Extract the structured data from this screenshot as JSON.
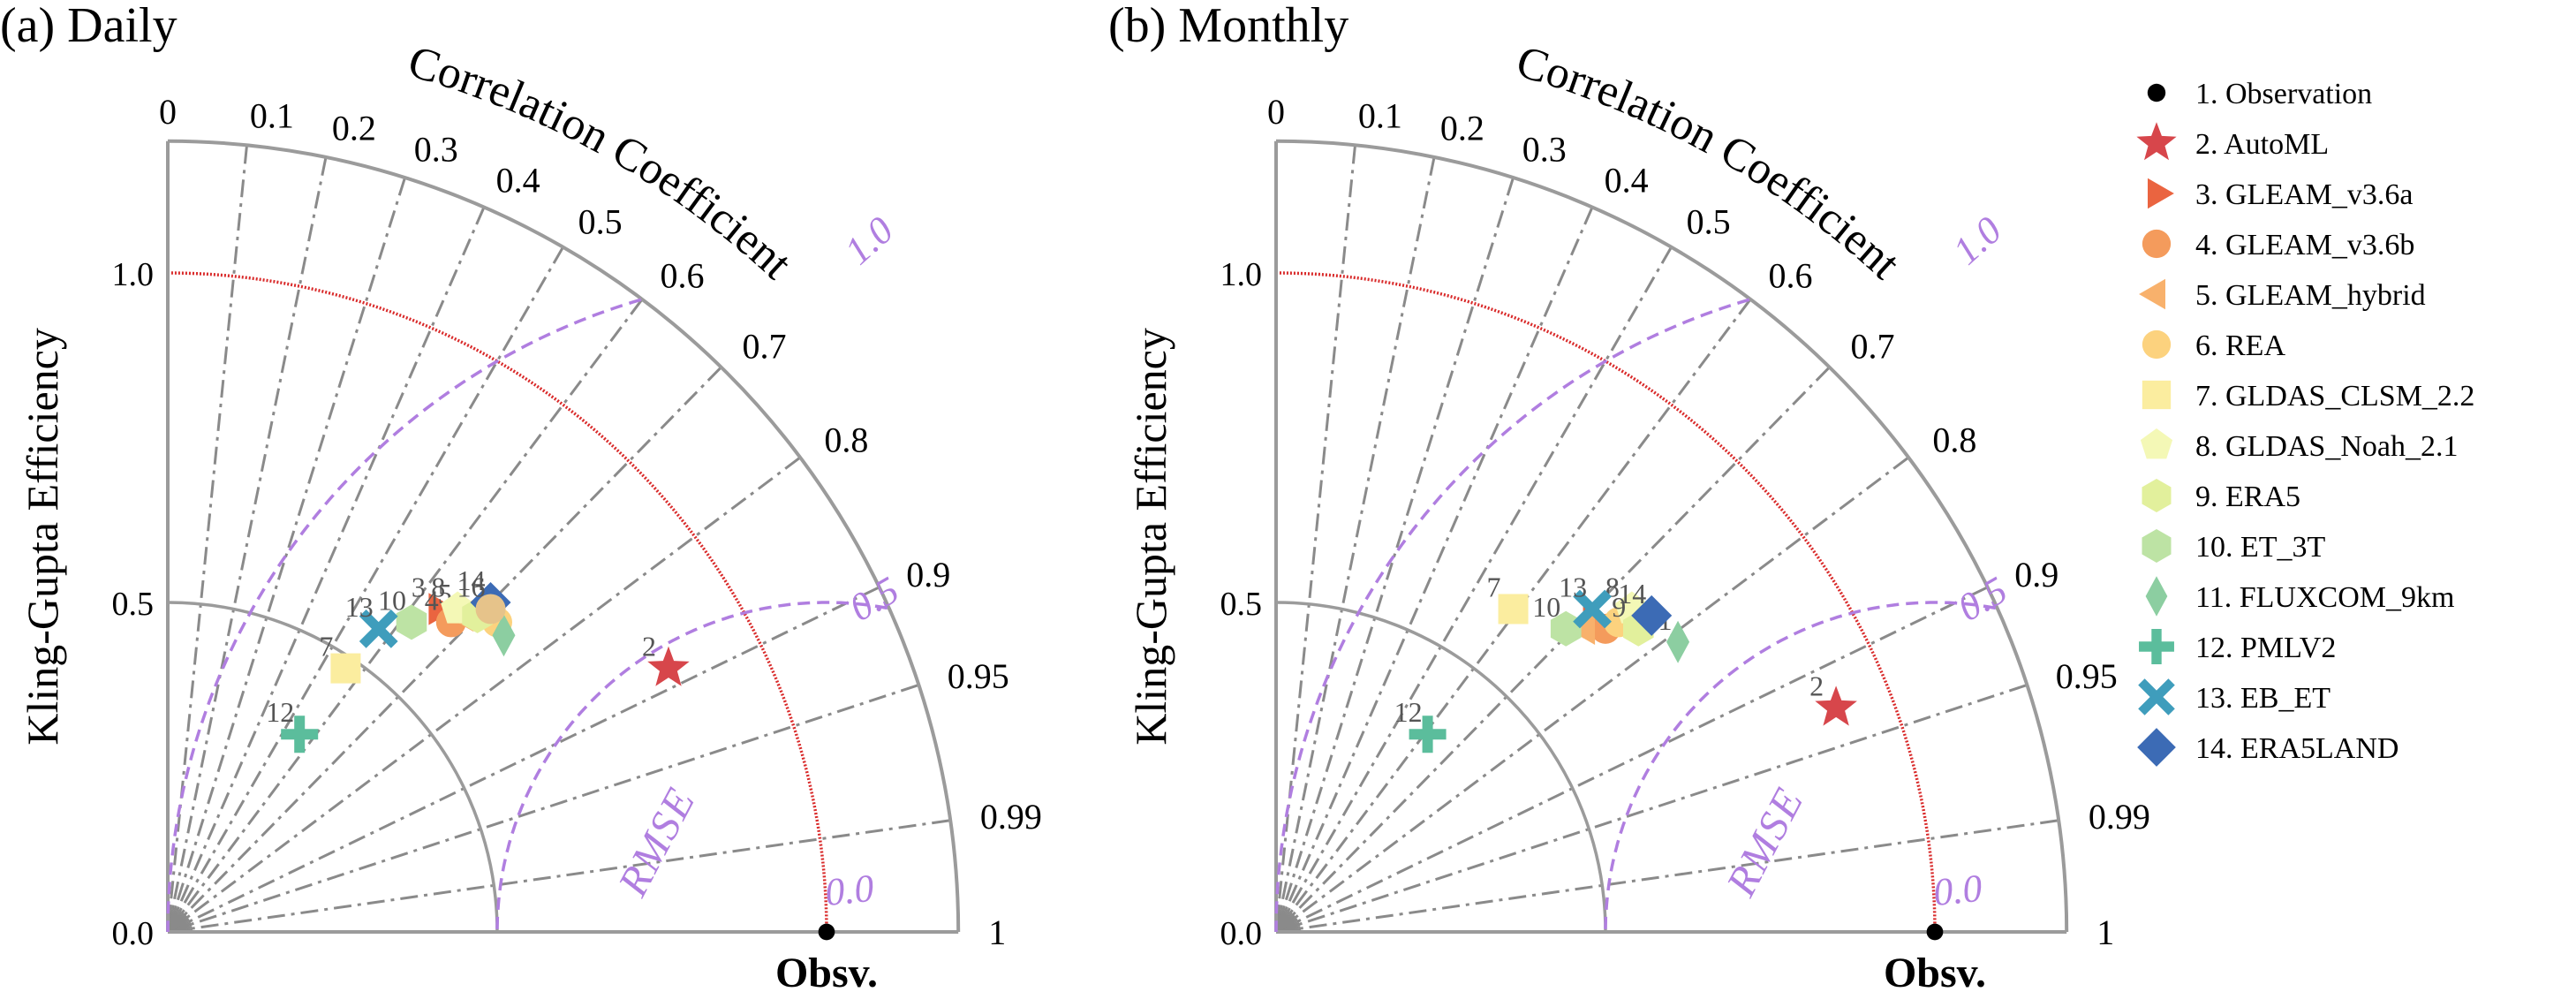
{
  "chart_data": [
    {
      "type": "taylor_diagram",
      "panel_label": "(a) Daily",
      "ylabel": "Kling-Gupta Efficiency",
      "angular_label": "Correlation Coefficient",
      "rms_label": "RMSE",
      "ref_label": "Obsv.",
      "radial_ticks": [
        "0.0",
        "0.5",
        "1.0"
      ],
      "radial_tick_values": [
        0.0,
        0.5,
        1.0
      ],
      "radial_max": 1.2,
      "corr_ticks": [
        "0",
        "0.1",
        "0.2",
        "0.3",
        "0.4",
        "0.5",
        "0.6",
        "0.7",
        "0.8",
        "0.9",
        "0.95",
        "0.99",
        "1"
      ],
      "corr_tick_values": [
        0,
        0.1,
        0.2,
        0.3,
        0.4,
        0.5,
        0.6,
        0.7,
        0.8,
        0.9,
        0.95,
        0.99,
        1
      ],
      "rms_contours": [
        "0.0",
        "0.5",
        "1.0"
      ],
      "rms_contour_values": [
        0.0,
        0.5,
        1.0
      ],
      "points": [
        {
          "id": "1",
          "x": 1.0,
          "y": 0.0,
          "show_id": false
        },
        {
          "id": "2",
          "x": 0.76,
          "y": 0.4,
          "show_id": true
        },
        {
          "id": "3",
          "x": 0.41,
          "y": 0.49,
          "show_id": true
        },
        {
          "id": "4",
          "x": 0.43,
          "y": 0.47,
          "show_id": true
        },
        {
          "id": "5",
          "x": 0.45,
          "y": 0.48,
          "show_id": true
        },
        {
          "id": "6",
          "x": 0.5,
          "y": 0.47,
          "show_id": false
        },
        {
          "id": "7",
          "x": 0.27,
          "y": 0.4,
          "show_id": true
        },
        {
          "id": "8",
          "x": 0.44,
          "y": 0.49,
          "show_id": true
        },
        {
          "id": "9",
          "x": 0.47,
          "y": 0.48,
          "show_id": false
        },
        {
          "id": "10",
          "x": 0.37,
          "y": 0.47,
          "show_id": true
        },
        {
          "id": "11",
          "x": 0.51,
          "y": 0.45,
          "show_id": false
        },
        {
          "id": "12",
          "x": 0.2,
          "y": 0.3,
          "show_id": true
        },
        {
          "id": "13",
          "x": 0.32,
          "y": 0.46,
          "show_id": true
        },
        {
          "id": "14",
          "x": 0.49,
          "y": 0.5,
          "show_id": true
        },
        {
          "id": "16",
          "x": 0.49,
          "y": 0.49,
          "show_id": true
        }
      ]
    },
    {
      "type": "taylor_diagram",
      "panel_label": "(b) Monthly",
      "ylabel": "Kling-Gupta Efficiency",
      "angular_label": "Correlation Coefficient",
      "rms_label": "RMSE",
      "ref_label": "Obsv.",
      "radial_ticks": [
        "0.0",
        "0.5",
        "1.0"
      ],
      "radial_tick_values": [
        0.0,
        0.5,
        1.0
      ],
      "radial_max": 1.2,
      "corr_ticks": [
        "0",
        "0.1",
        "0.2",
        "0.3",
        "0.4",
        "0.5",
        "0.6",
        "0.7",
        "0.8",
        "0.9",
        "0.95",
        "0.99",
        "1"
      ],
      "corr_tick_values": [
        0,
        0.1,
        0.2,
        0.3,
        0.4,
        0.5,
        0.6,
        0.7,
        0.8,
        0.9,
        0.95,
        0.99,
        1
      ],
      "rms_contours": [
        "0.0",
        "0.5",
        "1.0"
      ],
      "rms_contour_values": [
        0.0,
        0.5,
        1.0
      ],
      "points": [
        {
          "id": "1",
          "x": 1.0,
          "y": 0.0,
          "show_id": false
        },
        {
          "id": "2",
          "x": 0.85,
          "y": 0.34,
          "show_id": true
        },
        {
          "id": "3",
          "x": 0.48,
          "y": 0.47,
          "show_id": false
        },
        {
          "id": "4",
          "x": 0.5,
          "y": 0.46,
          "show_id": false
        },
        {
          "id": "5",
          "x": 0.47,
          "y": 0.46,
          "show_id": false
        },
        {
          "id": "6",
          "x": 0.52,
          "y": 0.47,
          "show_id": false
        },
        {
          "id": "7",
          "x": 0.36,
          "y": 0.49,
          "show_id": true
        },
        {
          "id": "8",
          "x": 0.54,
          "y": 0.49,
          "show_id": true
        },
        {
          "id": "9",
          "x": 0.55,
          "y": 0.46,
          "show_id": true
        },
        {
          "id": "10",
          "x": 0.44,
          "y": 0.46,
          "show_id": true
        },
        {
          "id": "11",
          "x": 0.61,
          "y": 0.44,
          "show_id": true
        },
        {
          "id": "12",
          "x": 0.23,
          "y": 0.3,
          "show_id": true
        },
        {
          "id": "13",
          "x": 0.48,
          "y": 0.49,
          "show_id": true
        },
        {
          "id": "14",
          "x": 0.57,
          "y": 0.48,
          "show_id": true
        }
      ]
    }
  ],
  "legend": {
    "position": "right",
    "entries": [
      {
        "id": "1",
        "label": "1. Observation",
        "marker": "circle",
        "color": "#000000"
      },
      {
        "id": "2",
        "label": "2. AutoML",
        "marker": "star",
        "color": "#d7464b"
      },
      {
        "id": "3",
        "label": "3. GLEAM_v3.6a",
        "marker": "triangle-right",
        "color": "#ea6440"
      },
      {
        "id": "4",
        "label": "4. GLEAM_v3.6b",
        "marker": "circle",
        "color": "#f49b5c"
      },
      {
        "id": "5",
        "label": "5. GLEAM_hybrid",
        "marker": "triangle-left",
        "color": "#f8b16c"
      },
      {
        "id": "6",
        "label": "6. REA",
        "marker": "circle",
        "color": "#fcd27e"
      },
      {
        "id": "7",
        "label": "7. GLDAS_CLSM_2.2",
        "marker": "square",
        "color": "#fbed9f"
      },
      {
        "id": "8",
        "label": "8. GLDAS_Noah_2.1",
        "marker": "pentagon",
        "color": "#f4f8b6"
      },
      {
        "id": "9",
        "label": "9. ERA5",
        "marker": "hexagon",
        "color": "#e2f09c"
      },
      {
        "id": "10",
        "label": "10. ET_3T",
        "marker": "hexagon",
        "color": "#bde3a4"
      },
      {
        "id": "11",
        "label": "11. FLUXCOM_9km",
        "marker": "diamond-thin",
        "color": "#8ccea1"
      },
      {
        "id": "12",
        "label": "12. PMLV2",
        "marker": "plus",
        "color": "#5bbd9c"
      },
      {
        "id": "13",
        "label": "13. EB_ET",
        "marker": "x",
        "color": "#3f9dbc"
      },
      {
        "id": "14",
        "label": "14. ERA5LAND",
        "marker": "diamond",
        "color": "#3c6bb5"
      }
    ]
  },
  "colors": {
    "axis": "#9b9b9b",
    "grid": "#8a8a8a",
    "rms": "#b07ee0",
    "kge_ref": "#d92a2a",
    "fallback_marker": "#e6c38a"
  }
}
